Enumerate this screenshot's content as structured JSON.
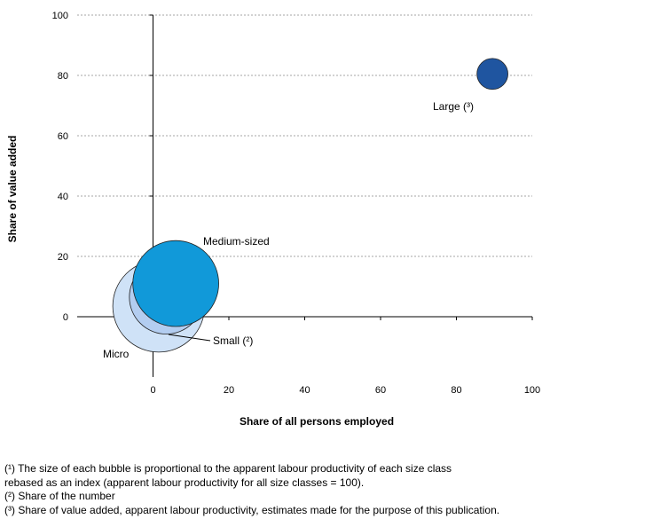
{
  "chart_data": {
    "type": "bubble",
    "xlabel": "Share of all persons employed",
    "ylabel": "Share of value added",
    "xlim": [
      -20,
      100
    ],
    "ylim": [
      -20,
      100
    ],
    "x_ticks": [
      0,
      20,
      40,
      60,
      80,
      100
    ],
    "y_ticks": [
      0,
      20,
      40,
      60,
      80,
      100
    ],
    "grid": "horizontal dashed",
    "series": [
      {
        "name": "Micro",
        "label": "Micro",
        "x": 1.5,
        "y": 3.5,
        "size_index": 107,
        "color": "#cfe2f7"
      },
      {
        "name": "Small",
        "label": "Small (²)",
        "x": 3.5,
        "y": 6.5,
        "size_index": 86,
        "color": "#b3cdf0"
      },
      {
        "name": "Medium-sized",
        "label": "Medium-sized",
        "x": 6,
        "y": 11,
        "size_index": 100,
        "color": "#1199d9"
      },
      {
        "name": "Large",
        "label": "Large (³)",
        "x": 89.5,
        "y": 80.5,
        "size_index": 36,
        "color": "#1f55a0"
      }
    ]
  },
  "footnotes": [
    "(¹) The size of each bubble is proportional to the apparent labour productivity of each size class",
    "rebased as an index (apparent labour productivity for all size classes = 100).",
    "(²) Share of  the number",
    "(³) Share of value added, apparent labour productivity, estimates made for the purpose of this publication."
  ]
}
